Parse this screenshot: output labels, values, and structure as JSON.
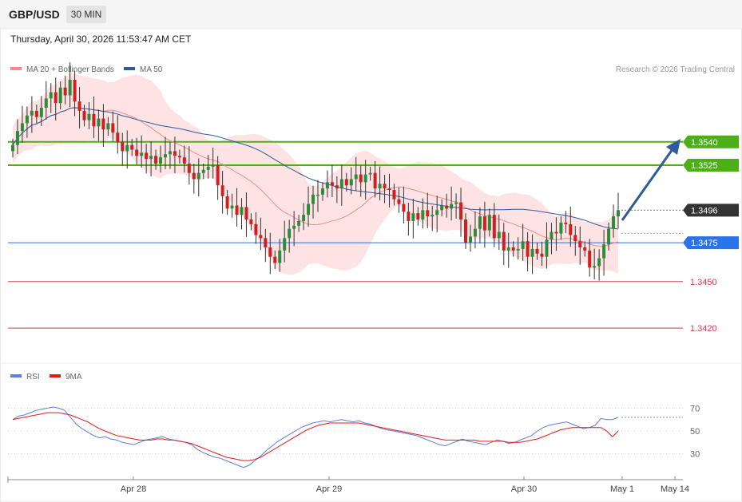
{
  "header": {
    "symbol": "GBP/USD",
    "timeframe": "30 MIN"
  },
  "datetime": "Thursday, April 30, 2026 11:53:47 AM CET",
  "credit": "Research © 2026 Trading Central",
  "colors": {
    "bollinger": "#f28b8b",
    "ma50": "#2e5b9c",
    "resistance": "#4caf14",
    "current": "#333333",
    "pivot": "#2a73e8",
    "support": "#d33a4e",
    "rsi": "#5b7fd9",
    "rsi_ma": "#e31919"
  },
  "chart_data": [
    {
      "type": "candlestick",
      "legend": [
        {
          "name": "MA 20 + Bollinger Bands",
          "color": "#f28b8b"
        },
        {
          "name": "MA 50",
          "color": "#2e5b9c"
        }
      ],
      "ylim": [
        1.34,
        1.358
      ],
      "levels": [
        {
          "value": 1.354,
          "label": "1.3540",
          "kind": "resistance"
        },
        {
          "value": 1.3525,
          "label": "1.3525",
          "kind": "resistance"
        },
        {
          "value": 1.3496,
          "label": "1.3496",
          "kind": "current"
        },
        {
          "value": 1.3475,
          "label": "1.3475",
          "kind": "pivot"
        },
        {
          "value": 1.345,
          "label": "1.3450",
          "kind": "support"
        },
        {
          "value": 1.342,
          "label": "1.3420",
          "kind": "support"
        }
      ],
      "x_ticks": [
        "Apr 28",
        "Apr 29",
        "Apr 30",
        "May 1",
        "May 14"
      ],
      "candle_count": 128,
      "close": [
        1.3538,
        1.3547,
        1.3552,
        1.3557,
        1.356,
        1.3556,
        1.3562,
        1.3568,
        1.3572,
        1.3565,
        1.3575,
        1.357,
        1.358,
        1.3566,
        1.356,
        1.3554,
        1.3558,
        1.355,
        1.3555,
        1.3548,
        1.3552,
        1.3546,
        1.354,
        1.3534,
        1.3538,
        1.3535,
        1.3531,
        1.3533,
        1.3529,
        1.3531,
        1.3526,
        1.353,
        1.3532,
        1.3534,
        1.3531,
        1.353,
        1.3526,
        1.352,
        1.3516,
        1.352,
        1.3522,
        1.3524,
        1.3525,
        1.3512,
        1.3505,
        1.3497,
        1.3499,
        1.3493,
        1.3498,
        1.349,
        1.3487,
        1.348,
        1.3478,
        1.3472,
        1.3466,
        1.3462,
        1.347,
        1.3478,
        1.3484,
        1.3486,
        1.3489,
        1.3493,
        1.35,
        1.3506,
        1.3506,
        1.351,
        1.3514,
        1.3512,
        1.351,
        1.3516,
        1.3512,
        1.3516,
        1.3519,
        1.3514,
        1.3519,
        1.352,
        1.351,
        1.3513,
        1.351,
        1.3509,
        1.3503,
        1.35,
        1.3495,
        1.3489,
        1.3494,
        1.349,
        1.3496,
        1.3492,
        1.3493,
        1.3496,
        1.3499,
        1.3497,
        1.35,
        1.3501,
        1.349,
        1.3475,
        1.3479,
        1.3484,
        1.3492,
        1.3483,
        1.3493,
        1.3478,
        1.3482,
        1.347,
        1.3472,
        1.347,
        1.3471,
        1.3476,
        1.3466,
        1.3471,
        1.3468,
        1.3466,
        1.3477,
        1.3482,
        1.3481,
        1.3488,
        1.3487,
        1.348,
        1.3476,
        1.3472,
        1.347,
        1.3459,
        1.346,
        1.3465,
        1.3474,
        1.3484,
        1.3492,
        1.3496
      ]
    },
    {
      "type": "line",
      "legend": [
        {
          "name": "RSI",
          "color": "#5b7fd9"
        },
        {
          "name": "9MA",
          "color": "#e31919"
        }
      ],
      "ylim": [
        15,
        85
      ],
      "y_ticks": [
        70,
        50,
        30
      ],
      "series": [
        {
          "name": "RSI",
          "values": [
            60,
            63,
            64,
            66,
            68,
            69,
            70,
            71,
            70,
            68,
            62,
            56,
            52,
            49,
            46,
            44,
            45,
            43,
            42,
            40,
            39,
            38,
            40,
            42,
            43,
            44,
            45,
            43,
            42,
            41,
            40,
            38,
            34,
            31,
            29,
            27,
            26,
            24,
            22,
            20,
            18,
            20,
            24,
            28,
            33,
            37,
            41,
            44,
            47,
            50,
            53,
            55,
            57,
            58,
            59,
            58,
            59,
            60,
            59,
            58,
            59,
            57,
            56,
            54,
            52,
            51,
            50,
            49,
            48,
            47,
            46,
            44,
            42,
            40,
            38,
            37,
            39,
            41,
            43,
            41,
            40,
            39,
            38,
            40,
            42,
            41,
            39,
            40,
            42,
            44,
            46,
            50,
            53,
            55,
            56,
            57,
            58,
            56,
            54,
            52,
            53,
            55,
            61,
            60,
            60,
            62
          ]
        },
        {
          "name": "9MA",
          "values": [
            60,
            61,
            62,
            63,
            64,
            65,
            66,
            66,
            66,
            65,
            64,
            62,
            60,
            58,
            55,
            52,
            50,
            48,
            46,
            45,
            44,
            43,
            42,
            42,
            42,
            43,
            43,
            42,
            42,
            41,
            40,
            39,
            37,
            35,
            33,
            31,
            29,
            27,
            26,
            25,
            24,
            24,
            25,
            27,
            30,
            33,
            36,
            39,
            42,
            45,
            48,
            51,
            53,
            55,
            56,
            57,
            57,
            57,
            57,
            57,
            57,
            56,
            55,
            54,
            53,
            52,
            51,
            50,
            49,
            48,
            47,
            46,
            45,
            44,
            43,
            42,
            42,
            42,
            42,
            42,
            42,
            41,
            41,
            41,
            41,
            41,
            40,
            40,
            40,
            41,
            42,
            43,
            45,
            47,
            49,
            51,
            52,
            53,
            53,
            53,
            53,
            53,
            53,
            50,
            45,
            50
          ]
        }
      ]
    }
  ]
}
